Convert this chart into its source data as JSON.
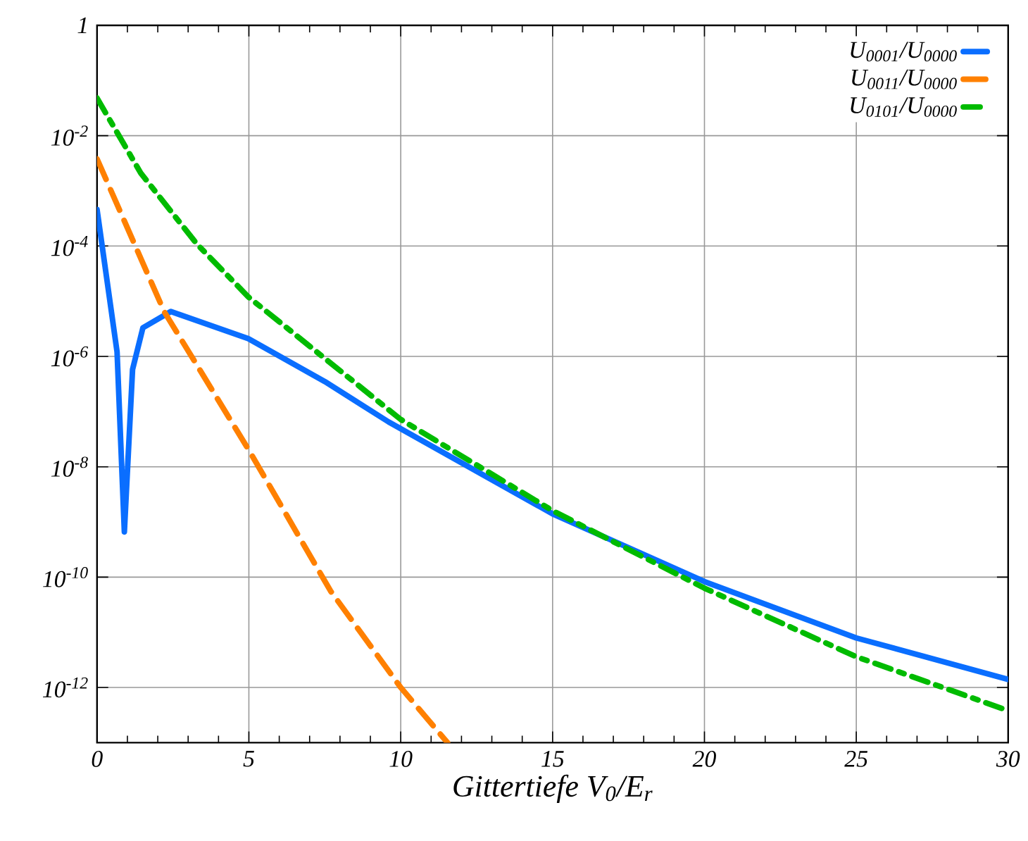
{
  "chart_data": {
    "type": "line",
    "xlabel": "Gittertiefe V$_{0}$/E$_{r}$",
    "xlim": [
      0,
      30
    ],
    "xticks": [
      0,
      5,
      10,
      15,
      20,
      25,
      30
    ],
    "ylim": [
      1e-13,
      1
    ],
    "yticks": [
      {
        "value": 1,
        "label": "1"
      },
      {
        "value": 0.01,
        "label": "10$^{-2}$"
      },
      {
        "value": 0.0001,
        "label": "10$^{-4}$"
      },
      {
        "value": 1e-06,
        "label": "10$^{-6}$"
      },
      {
        "value": 1e-08,
        "label": "10$^{-8}$"
      },
      {
        "value": 1e-10,
        "label": "10$^{-10}$"
      },
      {
        "value": 1e-12,
        "label": "10$^{-12}$"
      }
    ],
    "log": "y",
    "grid": true,
    "legend": "top right",
    "marker": "none",
    "series": [
      {
        "name": "U$_{0001}$/U$_{0000}$",
        "color": "#0a6eff",
        "line_style": "solid",
        "x": [
          0,
          0.66,
          0.9,
          1.17,
          1.51,
          2.43,
          4.98,
          7.5,
          9.6,
          15,
          20,
          25,
          30
        ],
        "values": [
          0.00046,
          1.2e-06,
          6.6e-10,
          5.8e-07,
          3.3e-06,
          6.5e-06,
          2.1e-06,
          3.5e-07,
          6.5e-08,
          1.4e-09,
          8.3e-11,
          7.9e-12,
          1.4e-12
        ]
      },
      {
        "name": "U$_{0011}$/U$_{0000}$",
        "color": "#ff8000",
        "line_style": "dashed",
        "x": [
          0,
          2.21,
          5,
          7.69,
          10,
          11.54
        ],
        "values": [
          0.0038,
          6.5e-06,
          2e-08,
          5.6e-11,
          1e-12,
          1e-13
        ]
      },
      {
        "name": "U$_{0101}$/U$_{0000}$",
        "color": "#00bb00",
        "line_style": "dashdot",
        "x": [
          0,
          1.44,
          3.28,
          4.98,
          10,
          15,
          20,
          25,
          30
        ],
        "values": [
          0.048,
          0.0021,
          0.00011,
          1.2e-05,
          7.2e-08,
          1.6e-09,
          6.3e-11,
          3.6e-12,
          3.8e-13
        ]
      }
    ]
  }
}
